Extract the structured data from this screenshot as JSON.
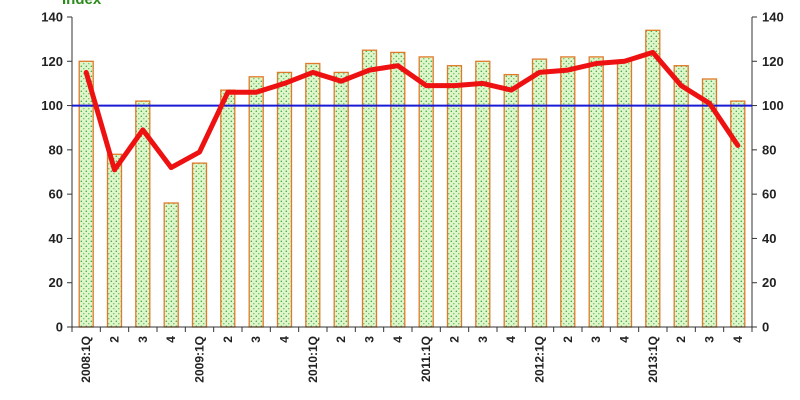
{
  "chart_data": {
    "type": "bar",
    "ylabel": "Index",
    "ylim": [
      0,
      140
    ],
    "yticks": [
      0,
      20,
      40,
      60,
      80,
      100,
      120,
      140
    ],
    "right_axis_ylim": [
      0,
      140
    ],
    "reference_line": 100,
    "categories": [
      "2008:1Q",
      "2",
      "3",
      "4",
      "2009:1Q",
      "2",
      "3",
      "4",
      "2010:1Q",
      "2",
      "3",
      "4",
      "2011:1Q",
      "2",
      "3",
      "4",
      "2012:1Q",
      "2",
      "3",
      "4",
      "2013:1Q",
      "2",
      "3",
      "4"
    ],
    "series": [
      {
        "type": "bar",
        "values": [
          120,
          78,
          102,
          56,
          74,
          107,
          113,
          115,
          119,
          115,
          125,
          124,
          122,
          118,
          120,
          114,
          121,
          122,
          122,
          120,
          134,
          118,
          112,
          102
        ]
      },
      {
        "type": "line",
        "values": [
          115,
          71,
          89,
          72,
          79,
          106,
          106,
          110,
          115,
          111,
          116,
          118,
          109,
          109,
          110,
          107,
          115,
          116,
          119,
          120,
          124,
          109,
          101,
          82
        ]
      }
    ],
    "colors": {
      "bar_fill": "#dff5cc",
      "bar_dots": "#3aa83a",
      "bar_edge": "#e07a2a",
      "line": "#ee1111",
      "reference_line": "#1a1ad6",
      "axis": "#333333"
    }
  }
}
